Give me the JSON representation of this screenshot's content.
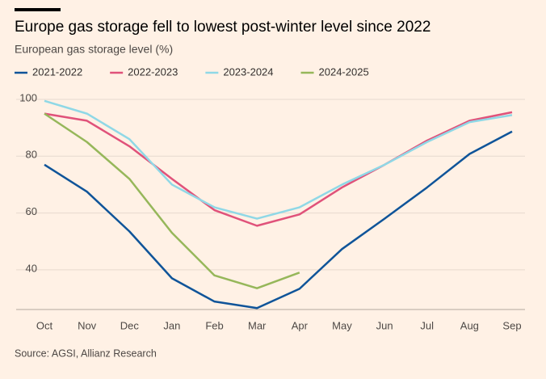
{
  "chart_data": {
    "type": "line",
    "title": "Europe gas storage fell to lowest post-winter level since 2022",
    "subtitle": "European gas storage level (%)",
    "source": "Source: AGSI, Allianz Research",
    "categories": [
      "Oct",
      "Nov",
      "Dec",
      "Jan",
      "Feb",
      "Mar",
      "Apr",
      "May",
      "Jun",
      "Jul",
      "Aug",
      "Sep"
    ],
    "series": [
      {
        "name": "2021-2022",
        "color": "#0f5499",
        "values": [
          77,
          67.5,
          53.5,
          37,
          28.8,
          26.5,
          33.3,
          47.3,
          58,
          69,
          80.8,
          88.7
        ]
      },
      {
        "name": "2022-2023",
        "color": "#e0527a",
        "values": [
          95,
          92.5,
          83.5,
          72,
          61,
          55.5,
          59.5,
          69,
          77,
          85.5,
          92.5,
          95.5
        ]
      },
      {
        "name": "2023-2024",
        "color": "#8fd8e6",
        "values": [
          99.5,
          95,
          86,
          70,
          62,
          58,
          62,
          70,
          77,
          85,
          92,
          94.5
        ]
      },
      {
        "name": "2024-2025",
        "color": "#96b75a",
        "values": [
          95,
          85,
          72,
          53,
          38,
          33.5,
          39,
          null,
          null,
          null,
          null,
          null
        ]
      }
    ],
    "ylim": [
      26,
      104
    ],
    "yticks": [
      40,
      60,
      80,
      100
    ],
    "grid": true,
    "legend": "top-left"
  }
}
